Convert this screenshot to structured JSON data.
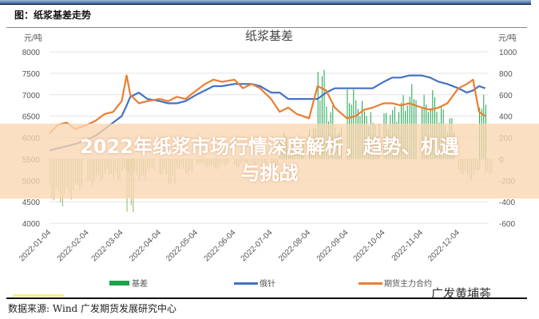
{
  "figure_title": "图：纸浆基差走势",
  "banner": {
    "line1": "2022年纸浆市场行情深度解析，趋势、机遇",
    "line2": "与挑战"
  },
  "source": "数据来源: Wind  广发期货发展研究中心",
  "watermark": "广发黄埔荟",
  "chart_data": {
    "type": "bar+line",
    "title": "纸浆基差",
    "ylabel": "元/吨",
    "y2label": "元/吨",
    "ylim": [
      4000,
      8000
    ],
    "y2lim": [
      -600,
      1000
    ],
    "yticks": [
      4000,
      4500,
      5000,
      5500,
      6000,
      6500,
      7000,
      7500,
      8000
    ],
    "y2ticks": [
      -600,
      -400,
      -200,
      0,
      200,
      400,
      600,
      800,
      1000
    ],
    "xticks": [
      "2022-01-04",
      "2022-02-04",
      "2022-03-04",
      "2022-04-04",
      "2022-05-04",
      "2022-06-04",
      "2022-07-04",
      "2022-08-04",
      "2022-09-04",
      "2022-10-04",
      "2022-11-04",
      "2022-12-04"
    ],
    "legend_position": "bottom",
    "grid": true,
    "colors": {
      "basis": "#1aa34a",
      "basis_negative": "#8fb86a",
      "spot": "#4472c4",
      "futures": "#ed7d31"
    },
    "dates": [
      "2022-01-04",
      "2022-01-11",
      "2022-01-18",
      "2022-01-25",
      "2022-02-04",
      "2022-02-11",
      "2022-02-18",
      "2022-02-25",
      "2022-03-04",
      "2022-03-08",
      "2022-03-11",
      "2022-03-18",
      "2022-03-25",
      "2022-04-04",
      "2022-04-11",
      "2022-04-18",
      "2022-04-25",
      "2022-05-04",
      "2022-05-11",
      "2022-05-18",
      "2022-05-25",
      "2022-06-04",
      "2022-06-11",
      "2022-06-18",
      "2022-06-25",
      "2022-07-04",
      "2022-07-11",
      "2022-07-18",
      "2022-07-25",
      "2022-08-04",
      "2022-08-11",
      "2022-08-18",
      "2022-08-25",
      "2022-09-04",
      "2022-09-11",
      "2022-09-18",
      "2022-09-25",
      "2022-10-04",
      "2022-10-11",
      "2022-10-18",
      "2022-10-25",
      "2022-11-04",
      "2022-11-11",
      "2022-11-18",
      "2022-11-25",
      "2022-12-04",
      "2022-12-11",
      "2022-12-16",
      "2022-12-21",
      "2022-12-26"
    ],
    "series": [
      {
        "name": "基差",
        "type": "bar",
        "axis": "right",
        "values": [
          -400,
          -450,
          -380,
          -300,
          -250,
          -200,
          -150,
          -200,
          -120,
          -500,
          -150,
          -200,
          -100,
          -150,
          -250,
          -100,
          -150,
          -50,
          -80,
          -100,
          -60,
          -80,
          -40,
          -50,
          -60,
          -100,
          250,
          150,
          200,
          300,
          850,
          500,
          300,
          650,
          550,
          450,
          350,
          450,
          500,
          600,
          700,
          600,
          650,
          500,
          400,
          -150,
          -200,
          -120,
          600,
          -150
        ]
      },
      {
        "name": "俄针",
        "type": "line",
        "axis": "left",
        "values": [
          5700,
          5750,
          5800,
          5850,
          5950,
          6050,
          6200,
          6350,
          6500,
          6750,
          6950,
          7050,
          6900,
          6850,
          6800,
          6800,
          6850,
          7000,
          7100,
          7200,
          7200,
          7250,
          7250,
          7250,
          7200,
          7050,
          7050,
          6900,
          6900,
          6900,
          6900,
          7050,
          7150,
          7150,
          7150,
          7150,
          7150,
          7300,
          7400,
          7400,
          7450,
          7450,
          7400,
          7300,
          7250,
          7150,
          7050,
          7100,
          7200,
          7150
        ]
      },
      {
        "name": "期货主力合约",
        "type": "line",
        "axis": "left",
        "values": [
          6100,
          6300,
          6350,
          6200,
          6300,
          6400,
          6550,
          6600,
          6850,
          7450,
          7000,
          6800,
          6850,
          6900,
          6850,
          6950,
          6900,
          7100,
          7250,
          7350,
          7300,
          7350,
          7150,
          7250,
          7150,
          6900,
          6600,
          6700,
          6550,
          6450,
          7200,
          7100,
          6700,
          6450,
          6500,
          6650,
          6700,
          6800,
          6800,
          6750,
          6800,
          6700,
          6650,
          6700,
          6800,
          7150,
          7250,
          7350,
          6600,
          6500
        ]
      }
    ]
  }
}
